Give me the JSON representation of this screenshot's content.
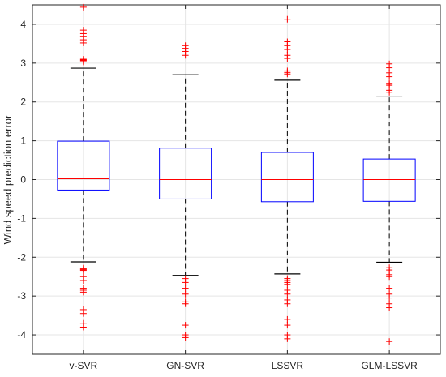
{
  "chart_data": {
    "type": "box",
    "ylabel": "Wind speed prediction error",
    "xlabel": "",
    "ylim": [
      -4.5,
      4.5
    ],
    "yticks": [
      -4,
      -3,
      -2,
      -1,
      0,
      1,
      2,
      3,
      4
    ],
    "grid": true,
    "colors": {
      "box": "#0000ff",
      "median": "#ff0000",
      "whisker": "#000000",
      "outlier": "#ff0000"
    },
    "categories": [
      "v-SVR",
      "GN-SVR",
      "LSSVR",
      "GLM-LSSVR"
    ],
    "boxes": [
      {
        "name": "v-SVR",
        "whisker_low": -2.12,
        "q1": -0.27,
        "median": 0.02,
        "q3": 0.99,
        "whisker_high": 2.87,
        "outliers_high": [
          3.03,
          3.06,
          3.08,
          3.1,
          3.52,
          3.6,
          3.68,
          3.76,
          3.85,
          4.44
        ],
        "outliers_low": [
          -2.28,
          -2.3,
          -2.32,
          -2.34,
          -2.5,
          -2.6,
          -2.8,
          -2.85,
          -2.9,
          -3.35,
          -3.45,
          -3.7,
          -3.8
        ]
      },
      {
        "name": "GN-SVR",
        "whisker_low": -2.47,
        "q1": -0.5,
        "median": 0.0,
        "q3": 0.81,
        "whisker_high": 2.7,
        "outliers_high": [
          3.2,
          3.3,
          3.38,
          3.45
        ],
        "outliers_low": [
          -2.55,
          -2.65,
          -2.8,
          -2.95,
          -3.15,
          -3.2,
          -3.75,
          -4.0,
          -4.07
        ]
      },
      {
        "name": "LSSVR",
        "whisker_low": -2.43,
        "q1": -0.57,
        "median": 0.0,
        "q3": 0.7,
        "whisker_high": 2.56,
        "outliers_high": [
          2.72,
          2.76,
          2.8,
          3.12,
          3.2,
          3.35,
          3.45,
          3.55,
          4.13
        ],
        "outliers_low": [
          -2.55,
          -2.6,
          -2.65,
          -2.7,
          -2.85,
          -2.95,
          -3.1,
          -3.2,
          -3.6,
          -3.75,
          -4.0,
          -4.1
        ]
      },
      {
        "name": "GLM-LSSVR",
        "whisker_low": -2.13,
        "q1": -0.56,
        "median": 0.0,
        "q3": 0.53,
        "whisker_high": 2.15,
        "outliers_high": [
          2.25,
          2.3,
          2.43,
          2.46,
          2.48,
          2.65,
          2.75,
          2.88,
          2.98
        ],
        "outliers_low": [
          -2.27,
          -2.33,
          -2.38,
          -2.45,
          -2.5,
          -2.8,
          -2.95,
          -3.05,
          -3.2,
          -3.3,
          -4.17
        ]
      }
    ]
  }
}
